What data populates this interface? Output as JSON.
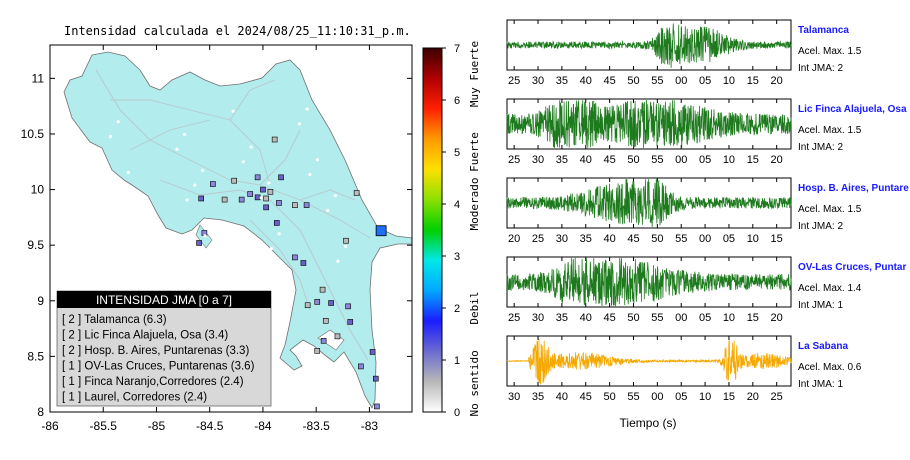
{
  "title": "Intensidad calculada el 2024/08/25_11:10:31_p.m.",
  "map": {
    "x_ticks": [
      "-86",
      "-85.5",
      "-85",
      "-84.5",
      "-84",
      "-83.5",
      "-83"
    ],
    "x_values": [
      -86,
      -85.5,
      -85,
      -84.5,
      -84,
      -83.5,
      -83
    ],
    "y_ticks": [
      "11",
      "10.5",
      "10",
      "9.5",
      "9",
      "8.5",
      "8"
    ],
    "y_values": [
      11,
      10.5,
      10,
      9.5,
      9,
      8.5,
      8
    ],
    "xlim": [
      -86,
      -82.6
    ],
    "ylim": [
      8,
      11.3
    ],
    "land_color": "#b2ecec",
    "stations": [
      {
        "lon": -83.89,
        "lat": 10.45
      },
      {
        "lon": -84.05,
        "lat": 10.11
      },
      {
        "lon": -83.83,
        "lat": 10.11
      },
      {
        "lon": -84.27,
        "lat": 10.08
      },
      {
        "lon": -84.47,
        "lat": 10.05
      },
      {
        "lon": -84.0,
        "lat": 10.0
      },
      {
        "lon": -83.93,
        "lat": 9.98
      },
      {
        "lon": -84.12,
        "lat": 9.96
      },
      {
        "lon": -84.05,
        "lat": 9.93
      },
      {
        "lon": -83.97,
        "lat": 9.92
      },
      {
        "lon": -84.2,
        "lat": 9.91
      },
      {
        "lon": -84.58,
        "lat": 9.92
      },
      {
        "lon": -84.36,
        "lat": 9.91
      },
      {
        "lon": -83.85,
        "lat": 9.88
      },
      {
        "lon": -83.97,
        "lat": 9.84
      },
      {
        "lon": -83.7,
        "lat": 9.86
      },
      {
        "lon": -83.59,
        "lat": 9.86
      },
      {
        "lon": -83.87,
        "lat": 9.7
      },
      {
        "lon": -83.12,
        "lat": 9.97
      },
      {
        "lon": -84.55,
        "lat": 9.61
      },
      {
        "lon": -84.6,
        "lat": 9.52
      },
      {
        "lon": -83.22,
        "lat": 9.54
      },
      {
        "lon": -83.7,
        "lat": 9.39
      },
      {
        "lon": -83.62,
        "lat": 9.34
      },
      {
        "lon": -83.44,
        "lat": 9.1
      },
      {
        "lon": -83.49,
        "lat": 8.99
      },
      {
        "lon": -83.36,
        "lat": 8.98
      },
      {
        "lon": -83.58,
        "lat": 8.96
      },
      {
        "lon": -83.2,
        "lat": 8.95
      },
      {
        "lon": -83.18,
        "lat": 8.81
      },
      {
        "lon": -83.3,
        "lat": 8.68
      },
      {
        "lon": -83.43,
        "lat": 8.64
      },
      {
        "lon": -82.97,
        "lat": 8.54
      },
      {
        "lon": -83.49,
        "lat": 8.55
      },
      {
        "lon": -83.08,
        "lat": 8.41
      },
      {
        "lon": -82.94,
        "lat": 8.3
      },
      {
        "lon": -83.41,
        "lat": 8.82
      },
      {
        "lon": -82.93,
        "lat": 8.05
      }
    ],
    "station_colors": [
      "#bbbbbb",
      "#8c86d8",
      "#6a5ec9"
    ],
    "highlight_station": {
      "lon": -82.89,
      "lat": 9.63,
      "color": "#1f6fff"
    }
  },
  "legend": {
    "header": "INTENSIDAD JMA [0 a 7]",
    "items": [
      "[ 2 ] Talamanca (6.3)",
      "[ 2 ] Lic Finca Alajuela, Osa (3.4)",
      "[ 2 ] Hosp. B. Aires, Puntarenas (3.3)",
      "[ 1 ] OV-Las Cruces, Puntarenas (3.6)",
      "[ 1 ] Finca Naranjo,Corredores (2.4)",
      "[ 1 ] Laurel, Corredores (2.4)"
    ]
  },
  "colorbar": {
    "ticks": [
      "0",
      "1",
      "2",
      "3",
      "4",
      "5",
      "6",
      "7"
    ],
    "tick_values": [
      0,
      1,
      2,
      3,
      4,
      5,
      6,
      7
    ],
    "labels": [
      {
        "text": "No sentido",
        "value": 0.55
      },
      {
        "text": "Debil",
        "value": 2.0
      },
      {
        "text": "Moderado",
        "value": 4.0
      },
      {
        "text": "Fuerte",
        "value": 5.0
      },
      {
        "text": "Muy Fuerte",
        "value": 6.5
      }
    ],
    "stops": [
      "#ffffff",
      "#b8b8b8",
      "#6b6bd0",
      "#1c1cff",
      "#00a8ff",
      "#00e8e8",
      "#00d000",
      "#8ce000",
      "#ffe000",
      "#ff9a00",
      "#ff2000",
      "#b00000",
      "#3a0000"
    ]
  },
  "waveforms": {
    "xlabel": "Tiempo (s)",
    "panels": [
      {
        "name": "Talamanca",
        "acel": "Acel. Max. 1.5",
        "jma": "Int JMA: 2",
        "color": "#1d7a1d",
        "ticks": [
          "25",
          "30",
          "35",
          "40",
          "45",
          "50",
          "55",
          "00",
          "05",
          "10",
          "15",
          "20"
        ],
        "first_tick": 25,
        "bursts": [
          {
            "t": 57.5,
            "a": 1.0,
            "w": 2.5
          },
          {
            "t": 64,
            "a": 0.7,
            "w": 6
          }
        ],
        "base": 0.15
      },
      {
        "name": "Lic Finca Alajuela, Osa",
        "acel": "Acel. Max. 1.5",
        "jma": "Int JMA: 2",
        "color": "#1d7a1d",
        "ticks": [
          "25",
          "30",
          "35",
          "40",
          "45",
          "50",
          "55",
          "00",
          "05",
          "10",
          "15",
          "20"
        ],
        "first_tick": 25,
        "bursts": [
          {
            "t": 37,
            "a": 1.0,
            "w": 5
          },
          {
            "t": 55,
            "a": 0.8,
            "w": 10
          }
        ],
        "base": 0.45
      },
      {
        "name": "Hosp. B. Aires, Puntare",
        "acel": "Acel. Max. 1.5",
        "jma": "Int JMA: 2",
        "color": "#1d7a1d",
        "ticks": [
          "20",
          "25",
          "30",
          "35",
          "40",
          "45",
          "50",
          "55",
          "00",
          "05",
          "10",
          "15"
        ],
        "first_tick": 20,
        "bursts": [
          {
            "t": 48,
            "a": 1.0,
            "w": 4
          },
          {
            "t": 41,
            "a": 0.6,
            "w": 8
          }
        ],
        "base": 0.25
      },
      {
        "name": "OV-Las Cruces, Puntar",
        "acel": "Acel. Max. 1.4",
        "jma": "Int JMA: 1",
        "color": "#1d7a1d",
        "ticks": [
          "25",
          "30",
          "35",
          "40",
          "45",
          "50",
          "55",
          "00",
          "05",
          "10",
          "15",
          "20"
        ],
        "first_tick": 25,
        "bursts": [
          {
            "t": 40,
            "a": 1.0,
            "w": 6
          },
          {
            "t": 50,
            "a": 0.6,
            "w": 10
          }
        ],
        "base": 0.35
      },
      {
        "name": "La Sabana",
        "acel": "Acel. Max. 0.6",
        "jma": "Int JMA: 1",
        "color": "#f5a800",
        "ticks": [
          "30",
          "35",
          "40",
          "45",
          "50",
          "55",
          "00",
          "05",
          "10",
          "15",
          "20",
          "25"
        ],
        "first_tick": 30,
        "bursts": [
          {
            "t": 35.5,
            "a": 0.9,
            "w": 2
          },
          {
            "t": 75.5,
            "a": 1.0,
            "w": 1.5
          },
          {
            "t": 44,
            "a": 0.35,
            "w": 8
          },
          {
            "t": 82,
            "a": 0.3,
            "w": 6
          }
        ],
        "base": 0.04,
        "quiet_until": 33
      }
    ]
  }
}
